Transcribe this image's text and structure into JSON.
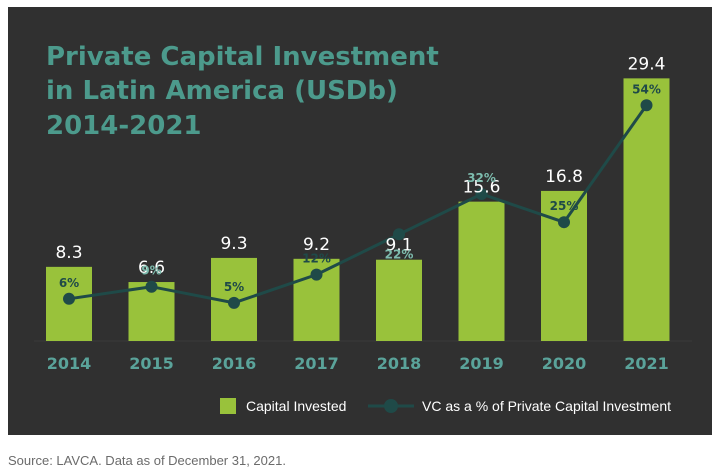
{
  "chart_data": {
    "type": "bar",
    "title_lines": [
      "Private Capital Investment",
      "in Latin America (USDb)",
      "2014-2021"
    ],
    "categories": [
      "2014",
      "2015",
      "2016",
      "2017",
      "2018",
      "2019",
      "2020",
      "2021"
    ],
    "series": [
      {
        "name": "Capital Invested",
        "type": "bar",
        "values": [
          8.3,
          6.6,
          9.3,
          9.2,
          9.1,
          15.6,
          16.8,
          29.4
        ],
        "labels": [
          "8.3",
          "6.6",
          "9.3",
          "9.2",
          "9.1",
          "15.6",
          "16.8",
          "29.4"
        ]
      },
      {
        "name": "VC as a % of Private Capital Investment",
        "type": "line",
        "values": [
          6,
          9,
          5,
          12,
          22,
          32,
          25,
          54
        ],
        "labels": [
          "6%",
          "9%",
          "5%",
          "12%",
          "22%",
          "32%",
          "25%",
          "54%"
        ]
      }
    ],
    "ylim": [
      0,
      30
    ],
    "y2lim": [
      0,
      62
    ],
    "legend_position": "bottom-right",
    "grid": false
  },
  "colors": {
    "panel": "#303030",
    "bar": "#99c23b",
    "line": "#1f4a48",
    "title": "#4c9a8c",
    "year": "#5aa39a"
  },
  "source_note": "Source: LAVCA. Data as of December 31, 2021."
}
